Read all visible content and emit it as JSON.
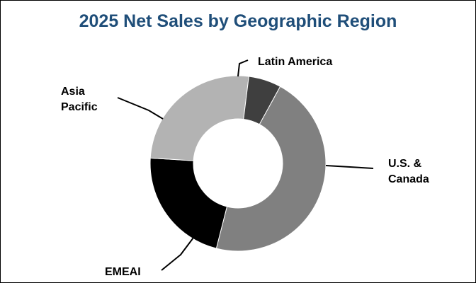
{
  "colors": {
    "title": "#1f4e79",
    "background": "#ffffff",
    "leader_line": "#000000"
  },
  "chart_data": {
    "type": "pie",
    "variant": "donut",
    "title": "2025 Net Sales by Geographic Region",
    "legend": "none",
    "slices": [
      {
        "label": "U.S. & Canada",
        "value": 46,
        "color": "#808080"
      },
      {
        "label": "EMEAI",
        "value": 22,
        "color": "#000000"
      },
      {
        "label": "Asia Pacific",
        "value": 26,
        "color": "#b3b3b3"
      },
      {
        "label": "Latin America",
        "value": 6,
        "color": "#3f3f3f"
      }
    ]
  }
}
